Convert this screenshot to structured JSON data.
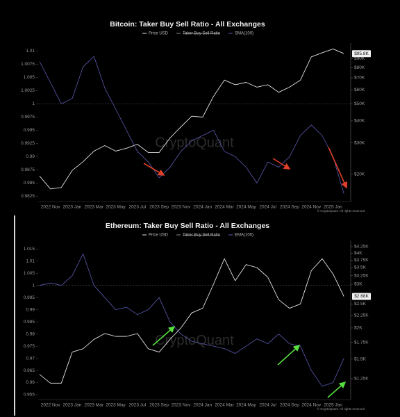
{
  "chart_data": [
    {
      "type": "line",
      "title": "Bitcoin: Taker Buy Sell Ratio - All Exchanges",
      "categories": [
        null,
        "2022 Nov",
        null,
        "2023 Jan",
        null,
        "2023 Mar",
        null,
        "2023 May",
        null,
        "2023 Jul",
        null,
        "2023 Sep",
        null,
        "2023 Nov",
        null,
        "2024 Jan",
        null,
        "2024 Mar",
        null,
        "2024 May",
        null,
        "2024 Jul",
        null,
        "2024 Sep",
        null,
        "2024 Nov",
        null,
        "2025 Jan",
        null
      ],
      "series": [
        {
          "name": "Price USD",
          "color": "#e4e4e4",
          "axis": "y2",
          "values": [
            19500,
            16500,
            16800,
            21000,
            23500,
            27000,
            29000,
            27000,
            28000,
            29500,
            26500,
            26500,
            32000,
            37000,
            42500,
            42000,
            55000,
            68000,
            64000,
            66000,
            62000,
            64000,
            58000,
            62000,
            68000,
            92000,
            97000,
            102000,
            96000
          ]
        },
        {
          "name": "Taker Buy Sell Ratio",
          "color": "#8a8a8a",
          "visible": false
        },
        {
          "name": "SMA(100)",
          "color": "#5b5bb0",
          "values": [
            1.008,
            1.004,
            1.0,
            1.001,
            1.007,
            1.009,
            1.003,
            0.999,
            0.995,
            0.991,
            0.989,
            0.986,
            0.988,
            0.991,
            0.993,
            0.994,
            0.995,
            0.991,
            0.99,
            0.988,
            0.985,
            0.989,
            0.988,
            0.99,
            0.994,
            0.996,
            0.994,
            0.99,
            0.983
          ]
        }
      ],
      "ylim": [
        0.9815,
        1.0115
      ],
      "yticks": [
        0.9825,
        0.985,
        0.9875,
        0.99,
        0.9925,
        0.995,
        0.9975,
        1,
        1.0025,
        1.005,
        1.0075,
        1.01
      ],
      "y2lim": [
        14000,
        110000
      ],
      "y2log": true,
      "y2ticks": [
        {
          "value": 20000,
          "label": "$20K"
        },
        {
          "value": 30000,
          "label": "$30K"
        },
        {
          "value": 40000,
          "label": "$40K"
        },
        {
          "value": 50000,
          "label": "$50K"
        },
        {
          "value": 60000,
          "label": "$60K"
        },
        {
          "value": 70000,
          "label": "$70K"
        },
        {
          "value": 80000,
          "label": "$80K"
        },
        {
          "value": 90000,
          "label": "$90K"
        }
      ],
      "reference_line": 1,
      "current_price": 95800,
      "current_price_label": "$95.8K",
      "watermark": "CryptoQuant",
      "credit": "© CryptoQuant. All rights reserved"
    },
    {
      "type": "line",
      "title": "Ethereum: Taker Buy Sell Ratio - All Exchanges",
      "categories": [
        null,
        "2022 Nov",
        null,
        "2023 Jan",
        null,
        "2023 Mar",
        null,
        "2023 May",
        null,
        "2023 Jul",
        null,
        "2023 Sep",
        null,
        "2023 Nov",
        null,
        "2024 Jan",
        null,
        "2024 Mar",
        null,
        "2024 May",
        null,
        "2024 Jul",
        null,
        "2024 Sep",
        null,
        "2024 Nov",
        null,
        "2025 Jan",
        null
      ],
      "series": [
        {
          "name": "Price USD",
          "color": "#e4e4e4",
          "axis": "y2",
          "values": [
            1300,
            1200,
            1200,
            1600,
            1650,
            1800,
            1900,
            1850,
            1850,
            1900,
            1650,
            1600,
            1800,
            2000,
            2300,
            2400,
            3000,
            3800,
            3100,
            3600,
            3500,
            3200,
            2600,
            2400,
            2500,
            3400,
            3800,
            3300,
            2680
          ]
        },
        {
          "name": "Taker Buy Sell Ratio",
          "color": "#8a8a8a",
          "visible": false
        },
        {
          "name": "EMA(100)",
          "color": "#5b5bb0",
          "values": [
            1.0,
            1.001,
            1.0,
            1.004,
            1.013,
            1.0,
            0.995,
            0.99,
            0.991,
            0.988,
            0.99,
            0.995,
            0.985,
            0.98,
            0.977,
            0.976,
            0.975,
            0.974,
            0.972,
            0.975,
            0.978,
            0.976,
            0.98,
            0.976,
            0.975,
            0.965,
            0.9585,
            0.96,
            0.97
          ]
        }
      ],
      "ylim": [
        0.953,
        1.0185
      ],
      "yticks": [
        0.955,
        0.96,
        0.965,
        0.97,
        0.975,
        0.98,
        0.985,
        0.99,
        0.995,
        1,
        1.005,
        1.01,
        1.015
      ],
      "y2lim": [
        1030,
        4500
      ],
      "y2log": true,
      "y2ticks": [
        {
          "value": 1250,
          "label": "$1.25K"
        },
        {
          "value": 1500,
          "label": "$1.5K"
        },
        {
          "value": 1750,
          "label": "$1.75K"
        },
        {
          "value": 2000,
          "label": "$2K"
        },
        {
          "value": 2250,
          "label": "$2.25K"
        },
        {
          "value": 2500,
          "label": "$2.5K"
        },
        {
          "value": 3000,
          "label": "$3K"
        },
        {
          "value": 3250,
          "label": "$3.25K"
        },
        {
          "value": 3500,
          "label": "$3.5K"
        },
        {
          "value": 3750,
          "label": "$3.75K"
        },
        {
          "value": 4000,
          "label": "$4K"
        },
        {
          "value": 4250,
          "label": "$4.25K"
        }
      ],
      "reference_line": 1,
      "current_price": 2680,
      "current_price_label": "$2.68K",
      "watermark": "CryptoQuant",
      "credit": "© CryptoQuant. All rights reserved"
    }
  ]
}
